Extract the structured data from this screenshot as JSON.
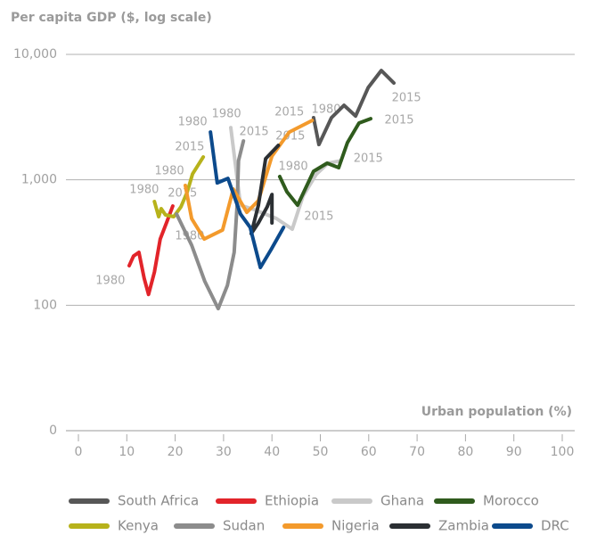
{
  "chart_data": {
    "type": "line",
    "title": "Per capita GDP ($, log scale)",
    "x_label": "Urban population (%)",
    "xlim": [
      0,
      100
    ],
    "xticks": [
      0,
      10,
      20,
      30,
      40,
      50,
      60,
      70,
      80,
      90,
      100
    ],
    "ylim": [
      10,
      10000
    ],
    "log_scale": true,
    "grid": true,
    "yticks": [
      {
        "value": 10,
        "label": "0"
      },
      100,
      {
        "value": 1000,
        "label": "1,000"
      },
      {
        "value": 10000,
        "label": "10,000"
      }
    ],
    "legend": "bottom",
    "series": [
      {
        "name": "South Africa",
        "color": "#575757",
        "x": [
          48.6,
          49.7,
          52.3,
          54.9,
          57.3,
          59.9,
          62.6,
          65.2
        ],
        "values": [
          3126,
          1911,
          3126,
          3930,
          3228,
          5447,
          7430,
          5916
        ]
      },
      {
        "name": "Ethiopia",
        "color": "#e2242a",
        "x": [
          10.5,
          11.4,
          12.5,
          13.6,
          14.5,
          15.7,
          16.9,
          18.2,
          19.5
        ],
        "values": [
          207,
          247,
          264,
          164,
          122,
          184,
          337,
          453,
          618
        ]
      },
      {
        "name": "Ghana",
        "color": "#c9c9c9",
        "x": [
          31.5,
          33.5,
          36.3,
          40.9,
          44.2,
          46.4,
          49.2,
          51.6,
          54.3
        ],
        "values": [
          2609,
          628,
          579,
          492,
          404,
          740,
          1114,
          1357,
          1422
        ]
      },
      {
        "name": "Morocco",
        "color": "#2f5b1d",
        "x": [
          41.6,
          43.1,
          45.3,
          48.6,
          51.4,
          53.8,
          55.6,
          58.0,
          60.4
        ],
        "values": [
          1061,
          803,
          628,
          1170,
          1357,
          1250,
          1977,
          2834,
          3071
        ]
      },
      {
        "name": "Kenya",
        "color": "#b7b21b",
        "x": [
          15.7,
          16.6,
          17.1,
          18.0,
          19.7,
          21.2,
          22.5,
          23.6,
          25.8
        ],
        "values": [
          671,
          508,
          589,
          525,
          508,
          610,
          803,
          1114,
          1520
        ]
      },
      {
        "name": "Sudan",
        "color": "#8c8c8c",
        "x": [
          20.3,
          23.4,
          26.1,
          28.9,
          30.8,
          32.2,
          32.8,
          33.1,
          34.1
        ],
        "values": [
          533,
          301,
          156,
          94,
          144,
          264,
          628,
          1422,
          2040
        ]
      },
      {
        "name": "Nigeria",
        "color": "#f39a2c",
        "x": [
          22.1,
          23.4,
          26.0,
          29.8,
          32.0,
          34.8,
          37.2,
          40.0,
          43.6,
          48.3
        ],
        "values": [
          901,
          490,
          337,
          398,
          843,
          551,
          682,
          1545,
          2403,
          2972
        ]
      },
      {
        "name": "Zambia",
        "color": "#2b2f33",
        "x": [
          40.0,
          40.0,
          39.0,
          37.2,
          35.7,
          37.2,
          38.7,
          41.3
        ],
        "values": [
          453,
          764,
          608,
          453,
          372,
          628,
          1472,
          1880
        ]
      },
      {
        "name": "DRC",
        "color": "#0c4a8c",
        "x": [
          27.3,
          28.7,
          30.9,
          33.5,
          35.5,
          37.6,
          39.8,
          42.4
        ],
        "values": [
          2404,
          946,
          1026,
          533,
          417,
          200,
          277,
          417
        ]
      }
    ],
    "annotations": [
      {
        "text": "1980",
        "x": 6.6,
        "y": 156
      },
      {
        "text": "1980",
        "x": 13.6,
        "y": 830
      },
      {
        "text": "1980",
        "x": 18.8,
        "y": 1170
      },
      {
        "text": "2015",
        "x": 23.0,
        "y": 1820
      },
      {
        "text": "2015",
        "x": 21.5,
        "y": 777
      },
      {
        "text": "1980",
        "x": 23.0,
        "y": 354
      },
      {
        "text": "1980",
        "x": 23.6,
        "y": 2877
      },
      {
        "text": "1980",
        "x": 30.6,
        "y": 3334
      },
      {
        "text": "2015",
        "x": 36.3,
        "y": 2404
      },
      {
        "text": "2015",
        "x": 43.6,
        "y": 3444
      },
      {
        "text": "1980",
        "x": 51.2,
        "y": 3620
      },
      {
        "text": "2015",
        "x": 43.8,
        "y": 2213
      },
      {
        "text": "1980",
        "x": 44.4,
        "y": 1270
      },
      {
        "text": "2015",
        "x": 49.7,
        "y": 508
      },
      {
        "text": "2015",
        "x": 59.9,
        "y": 1472
      },
      {
        "text": "2015",
        "x": 66.3,
        "y": 2972
      },
      {
        "text": "2015",
        "x": 67.8,
        "y": 4477
      }
    ]
  }
}
